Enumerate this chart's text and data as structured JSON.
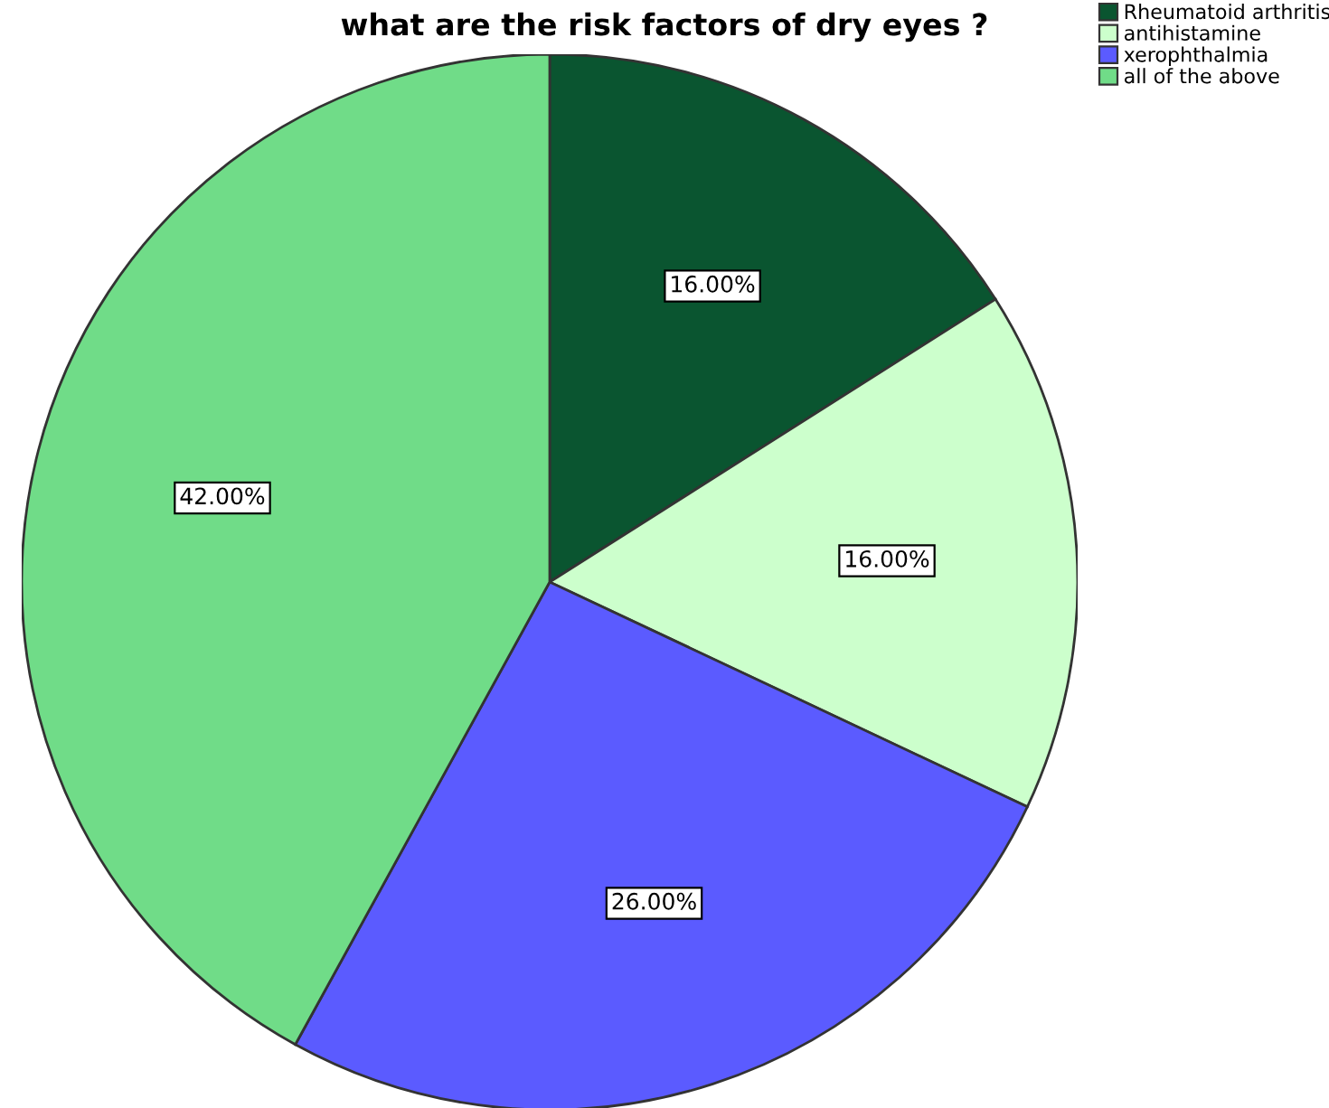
{
  "chart_data": {
    "type": "pie",
    "title": "what are the risk factors of dry eyes ?",
    "categories": [
      "Rheumatoid arthritis",
      "antihistamine",
      "xerophthalmia",
      "all of the above"
    ],
    "values": [
      16,
      16,
      26,
      42
    ],
    "colors": [
      "#0a5530",
      "#ccffcc",
      "#5b5bff",
      "#70dc88"
    ],
    "value_labels": [
      "16.00%",
      "16.00%",
      "26.00%",
      "42.00%"
    ],
    "legend": "top right"
  }
}
